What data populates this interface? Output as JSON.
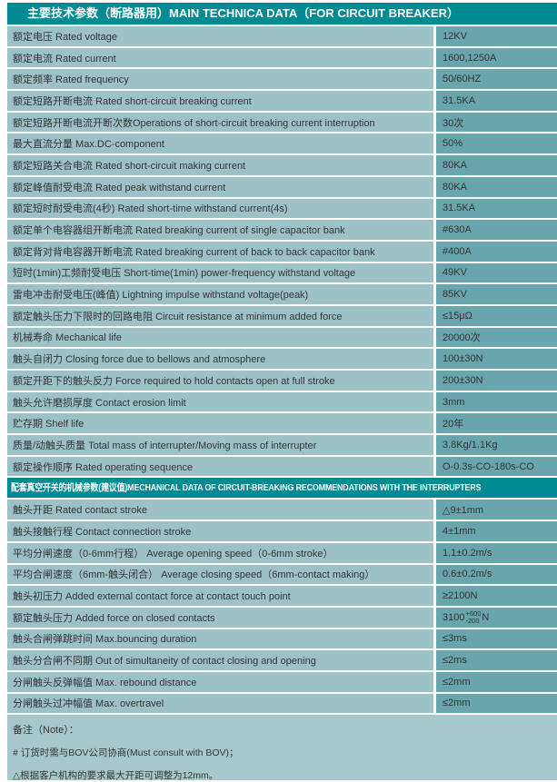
{
  "colors": {
    "header_bg": "#008b94",
    "header_text": "#ffffff",
    "label_cell_bg": "#9cc2c7",
    "value_cell_bg": "#68a5ac",
    "notes_bg": "#a6c8cb",
    "text": "#333333"
  },
  "section1": {
    "title": "主要技术参数（断路器用）MAIN TECHNICA DATA（FOR CIRCUIT BREAKER）",
    "rows": [
      {
        "label": "额定电压 Rated voltage",
        "value": "12KV"
      },
      {
        "label": "额定电流 Rated current",
        "value": "1600,1250A"
      },
      {
        "label": "额定频率 Rated frequency",
        "value": "50/60HZ"
      },
      {
        "label": "额定短路开断电流 Rated short-circuit breaking current",
        "value": "31.5KA"
      },
      {
        "label": "额定短路开断电流开断次数Operations of short-circuit breaking current interruption",
        "value": "30次"
      },
      {
        "label": "最大直流分量 Max.DC-component",
        "value": "50%"
      },
      {
        "label": "额定短路关合电流 Rated short-circuit making current",
        "value": "80KA"
      },
      {
        "label": "额定峰值耐受电流 Rated peak withstand current",
        "value": "80KA"
      },
      {
        "label": "额定短时耐受电流(4秒) Rated short-time withstand current(4s)",
        "value": "31.5KA"
      },
      {
        "label": "额定单个电容器组开断电流 Rated breaking current of single capacitor bank",
        "value": "#630A"
      },
      {
        "label": "额定背对背电容器开断电流 Rated breaking current of back to back capacitor bank",
        "value": "#400A"
      },
      {
        "label": "短时(1min)工频耐受电压 Short-time(1min) power-frequency withstand voltage",
        "value": "49KV"
      },
      {
        "label": "雷电冲击耐受电压(峰值) Lightning impulse withstand voltage(peak)",
        "value": "85KV"
      },
      {
        "label": "额定触头压力下限时的回路电阻 Circuit resistance at minimum added force",
        "value": "≤15μΩ"
      },
      {
        "label": "机械寿命 Mechanical life",
        "value": "20000次"
      },
      {
        "label": "触头自闭力 Closing force due to bellows and atmosphere",
        "value": "100±30N"
      },
      {
        "label": "额定开距下的触头反力 Force required to hold contacts open at full stroke",
        "value": "200±30N"
      },
      {
        "label": "触头允许磨损厚度 Contact erosion limit",
        "value": "3mm"
      },
      {
        "label": "贮存期 Shelf life",
        "value": "20年"
      },
      {
        "label": "质量/动触头质量 Total mass of interrupter/Moving mass of interrupter",
        "value": "3.8Kg/1.1Kg"
      },
      {
        "label": "额定操作顺序 Rated operating sequence",
        "value": "O-0.3s-CO-180s-CO"
      }
    ]
  },
  "section2": {
    "title": "配套真空开关的机械参数(建议值)MECHANICAL DATA OF CIRCUIT-BREAKING RECOMMENDATIONS WITH THE INTERRUPTERS",
    "rows": [
      {
        "label": "触头开距 Rated contact stroke",
        "value": "△9±1mm"
      },
      {
        "label": "触头接触行程 Contact connection stroke",
        "value": "4±1mm"
      },
      {
        "label": "平均分闸速度（0-6mm行程） Average opening speed（0-6mm stroke）",
        "value": "1.1±0.2m/s"
      },
      {
        "label": "平均合闸速度（6mm-触头闭合） Average closing speed（6mm-contact making）",
        "value": "0.6±0.2m/s"
      },
      {
        "label": "触头初压力 Added external contact force at contact touch point",
        "value": "≥2100N"
      },
      {
        "label": "额定触头压力 Added force on closed contacts",
        "value": {
          "base": "3100",
          "sup": "+600",
          "sub": "-200",
          "suffix": "N"
        }
      },
      {
        "label": "触头合闸弹跳时间 Max.bouncing duration",
        "value": "≤3ms"
      },
      {
        "label": "触头分合闸不同期 Out of simultaneity of contact closing and opening",
        "value": "≤2ms"
      },
      {
        "label": "分闸触头反弹幅值 Max. rebound distance",
        "value": "≤2mm"
      },
      {
        "label": "分闸触头过冲幅值 Max. overtravel",
        "value": "≤2mm"
      }
    ]
  },
  "notes": {
    "heading": "备注（Note）：",
    "items": [
      "# 订货时需与BOV公司协商(Must consult with BOV)；",
      "△根据客户机构的要求最大开距可调整为12mm。"
    ]
  }
}
